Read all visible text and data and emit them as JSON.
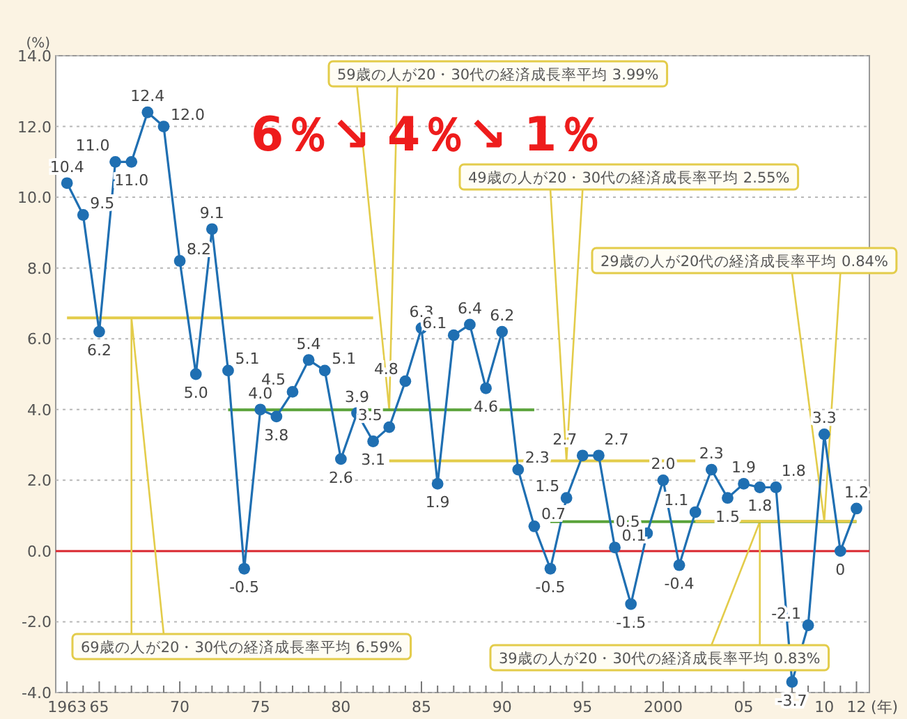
{
  "chart_data": {
    "type": "line",
    "ylabel": "(%)",
    "xlabel": "(年)",
    "xlim": [
      1962.3,
      2012.8
    ],
    "ylim": [
      -4,
      14
    ],
    "yticks": [
      {
        "value": -4,
        "label": "-4.0"
      },
      {
        "value": -2,
        "label": "-2.0"
      },
      {
        "value": 0,
        "label": "0.0"
      },
      {
        "value": 2,
        "label": "2.0"
      },
      {
        "value": 4,
        "label": "4.0"
      },
      {
        "value": 6,
        "label": "6.0"
      },
      {
        "value": 8,
        "label": "8.0"
      },
      {
        "value": 10,
        "label": "10.0"
      },
      {
        "value": 12,
        "label": "12.0"
      },
      {
        "value": 14,
        "label": "14.0"
      }
    ],
    "xticks": [
      {
        "value": 1963,
        "label": "1963"
      },
      {
        "value": 1964,
        "label": null
      },
      {
        "value": 1965,
        "label": "65"
      },
      {
        "value": 1966,
        "label": null
      },
      {
        "value": 1967,
        "label": null
      },
      {
        "value": 1968,
        "label": null
      },
      {
        "value": 1969,
        "label": null
      },
      {
        "value": 1970,
        "label": "70"
      },
      {
        "value": 1971,
        "label": null
      },
      {
        "value": 1972,
        "label": null
      },
      {
        "value": 1973,
        "label": null
      },
      {
        "value": 1974,
        "label": null
      },
      {
        "value": 1975,
        "label": "75"
      },
      {
        "value": 1976,
        "label": null
      },
      {
        "value": 1977,
        "label": null
      },
      {
        "value": 1978,
        "label": null
      },
      {
        "value": 1979,
        "label": null
      },
      {
        "value": 1980,
        "label": "80"
      },
      {
        "value": 1981,
        "label": null
      },
      {
        "value": 1982,
        "label": null
      },
      {
        "value": 1983,
        "label": null
      },
      {
        "value": 1984,
        "label": null
      },
      {
        "value": 1985,
        "label": "85"
      },
      {
        "value": 1986,
        "label": null
      },
      {
        "value": 1987,
        "label": null
      },
      {
        "value": 1988,
        "label": null
      },
      {
        "value": 1989,
        "label": null
      },
      {
        "value": 1990,
        "label": "90"
      },
      {
        "value": 1991,
        "label": null
      },
      {
        "value": 1992,
        "label": null
      },
      {
        "value": 1993,
        "label": null
      },
      {
        "value": 1994,
        "label": null
      },
      {
        "value": 1995,
        "label": "95"
      },
      {
        "value": 1996,
        "label": null
      },
      {
        "value": 1997,
        "label": null
      },
      {
        "value": 1998,
        "label": null
      },
      {
        "value": 1999,
        "label": null
      },
      {
        "value": 2000,
        "label": "2000"
      },
      {
        "value": 2001,
        "label": null
      },
      {
        "value": 2002,
        "label": null
      },
      {
        "value": 2003,
        "label": null
      },
      {
        "value": 2004,
        "label": null
      },
      {
        "value": 2005,
        "label": "05"
      },
      {
        "value": 2006,
        "label": null
      },
      {
        "value": 2007,
        "label": null
      },
      {
        "value": 2008,
        "label": null
      },
      {
        "value": 2009,
        "label": null
      },
      {
        "value": 2010,
        "label": "10"
      },
      {
        "value": 2011,
        "label": null
      },
      {
        "value": 2012,
        "label": "12"
      }
    ],
    "grid": "y",
    "ref_lines": [
      {
        "axis": "y",
        "value": 0,
        "color": "#d9262e"
      }
    ],
    "series": [
      {
        "color": "#1f6fb2",
        "marker": "circle",
        "x": [
          1963,
          1964,
          1965,
          1966,
          1967,
          1968,
          1969,
          1970,
          1971,
          1972,
          1973,
          1974,
          1975,
          1976,
          1977,
          1978,
          1979,
          1980,
          1981,
          1982,
          1983,
          1984,
          1985,
          1986,
          1987,
          1988,
          1989,
          1990,
          1991,
          1992,
          1993,
          1994,
          1995,
          1996,
          1997,
          1998,
          1999,
          2000,
          2001,
          2002,
          2003,
          2004,
          2005,
          2006,
          2007,
          2008,
          2009,
          2010,
          2011,
          2012
        ],
        "values": [
          10.4,
          9.5,
          6.2,
          11.0,
          11.0,
          12.4,
          12.0,
          8.2,
          5.0,
          9.1,
          5.1,
          -0.5,
          4.0,
          3.8,
          4.5,
          5.4,
          5.1,
          2.6,
          3.9,
          3.1,
          3.5,
          4.8,
          6.3,
          1.9,
          6.1,
          6.4,
          4.6,
          6.2,
          2.3,
          0.7,
          -0.5,
          1.5,
          2.7,
          2.7,
          0.1,
          -1.5,
          0.5,
          2.0,
          -0.4,
          1.1,
          2.3,
          1.5,
          1.9,
          1.8,
          1.8,
          -3.7,
          -2.1,
          3.3,
          0,
          1.2
        ],
        "value_labels": [
          "10.4",
          "9.5",
          "6.2",
          "11.0",
          "11.0",
          "12.4",
          "12.0",
          "8.2",
          "5.0",
          "9.1",
          "5.1",
          "-0.5",
          "4.0",
          "3.8",
          "4.5",
          "5.4",
          "5.1",
          "2.6",
          "3.9",
          "3.1",
          "3.5",
          "4.8",
          "6.3",
          "1.9",
          "6.1",
          "6.4",
          "4.6",
          "6.2",
          "2.3",
          "0.7",
          "-0.5",
          "1.5",
          "2.7",
          "2.7",
          "0.1",
          "-1.5",
          "0.5",
          "2.0",
          "-0.4",
          "1.1",
          "2.3",
          "1.5",
          "1.9",
          "1.8",
          "1.8",
          "-3.7",
          "-2.1",
          "3.3",
          "0",
          "1.2"
        ]
      },
      {
        "color": "#e3cc4a",
        "marker": "none",
        "x": [
          1963,
          1982
        ],
        "values": [
          6.59,
          6.59
        ]
      },
      {
        "color": "#5aa33a",
        "marker": "none",
        "x": [
          1973,
          1992
        ],
        "values": [
          3.99,
          3.99
        ]
      },
      {
        "color": "#e3cc4a",
        "marker": "none",
        "x": [
          1983,
          2002
        ],
        "values": [
          2.55,
          2.55
        ]
      },
      {
        "color": "#5aa33a",
        "marker": "none",
        "x": [
          1993,
          2012
        ],
        "values": [
          0.83,
          0.83
        ]
      },
      {
        "color": "#e3cc4a",
        "marker": "none",
        "x": [
          2002,
          2012
        ],
        "values": [
          0.84,
          0.84
        ]
      }
    ],
    "annotations": [
      "69歳の人が20・30代の経済成長率平均 6.59%",
      "59歳の人が20・30代の経済成長率平均 3.99%",
      "49歳の人が20・30代の経済成長率平均 2.55%",
      "29歳の人が20代の経済成長率平均 0.84%",
      "39歳の人が20・30代の経済成長率平均 0.83%",
      "6％↘ 4％↘ 1％"
    ]
  }
}
